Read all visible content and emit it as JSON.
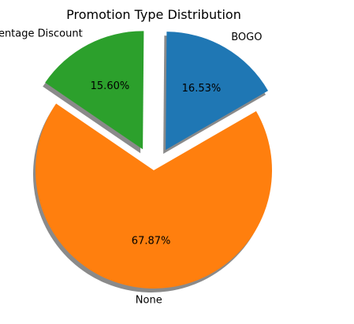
{
  "chart_data": {
    "type": "pie",
    "title": "Promotion Type Distribution",
    "categories": [
      "BOGO",
      "Percentage Discount",
      "None"
    ],
    "values": [
      16.53,
      15.6,
      67.87
    ],
    "value_labels": [
      "16.53%",
      "15.60%",
      "67.87%"
    ],
    "colors": [
      "#1f77b4",
      "#2ca02c",
      "#ff7f0e"
    ],
    "explode": [
      0.2,
      0.2,
      0
    ],
    "start_angle_deg": 30,
    "shadow": true,
    "shadow_color": "#8a8a8a",
    "legend": false
  }
}
